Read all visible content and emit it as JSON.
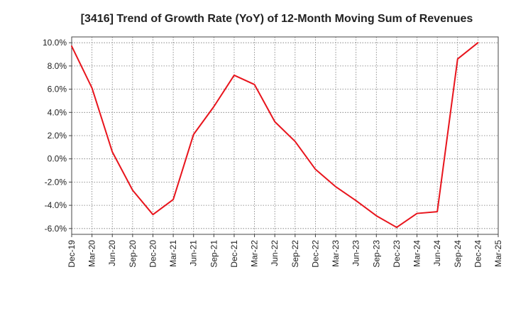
{
  "chart_data": {
    "type": "line",
    "title": "[3416]  Trend of Growth Rate (YoY) of 12-Month Moving Sum of Revenues",
    "xlabel": "",
    "ylabel": "",
    "ylim": [
      -6.5,
      10.5
    ],
    "yticks": [
      10,
      8,
      6,
      4,
      2,
      0,
      -2,
      -4,
      -6
    ],
    "ytick_labels": [
      "10.0%",
      "8.0%",
      "6.0%",
      "4.0%",
      "2.0%",
      "0.0%",
      "-2.0%",
      "-4.0%",
      "-6.0%"
    ],
    "x_tick_labels": [
      "Dec-19",
      "Mar-20",
      "Jun-20",
      "Sep-20",
      "Dec-20",
      "Mar-21",
      "Jun-21",
      "Sep-21",
      "Dec-21",
      "Mar-22",
      "Jun-22",
      "Sep-22",
      "Dec-22",
      "Mar-23",
      "Jun-23",
      "Sep-23",
      "Dec-23",
      "Mar-24",
      "Jun-24",
      "Sep-24",
      "Dec-24",
      "Mar-25"
    ],
    "grid": true,
    "series": [
      {
        "color": "#e8141c",
        "x": [
          "Dec-19",
          "Mar-20",
          "Jun-20",
          "Sep-20",
          "Dec-20",
          "Mar-21",
          "Jun-21",
          "Sep-21",
          "Dec-21",
          "Mar-22",
          "Jun-22",
          "Sep-22",
          "Dec-22",
          "Mar-23",
          "Jun-23",
          "Sep-23",
          "Dec-23",
          "Mar-24",
          "Jun-24",
          "Sep-24",
          "Dec-24"
        ],
        "values": [
          9.7,
          6.1,
          0.6,
          -2.7,
          -4.8,
          -3.5,
          2.1,
          4.5,
          7.2,
          6.4,
          3.2,
          1.5,
          -0.9,
          -2.4,
          -3.6,
          -4.9,
          -5.9,
          -4.7,
          -4.55,
          8.6,
          10.0
        ]
      }
    ]
  }
}
